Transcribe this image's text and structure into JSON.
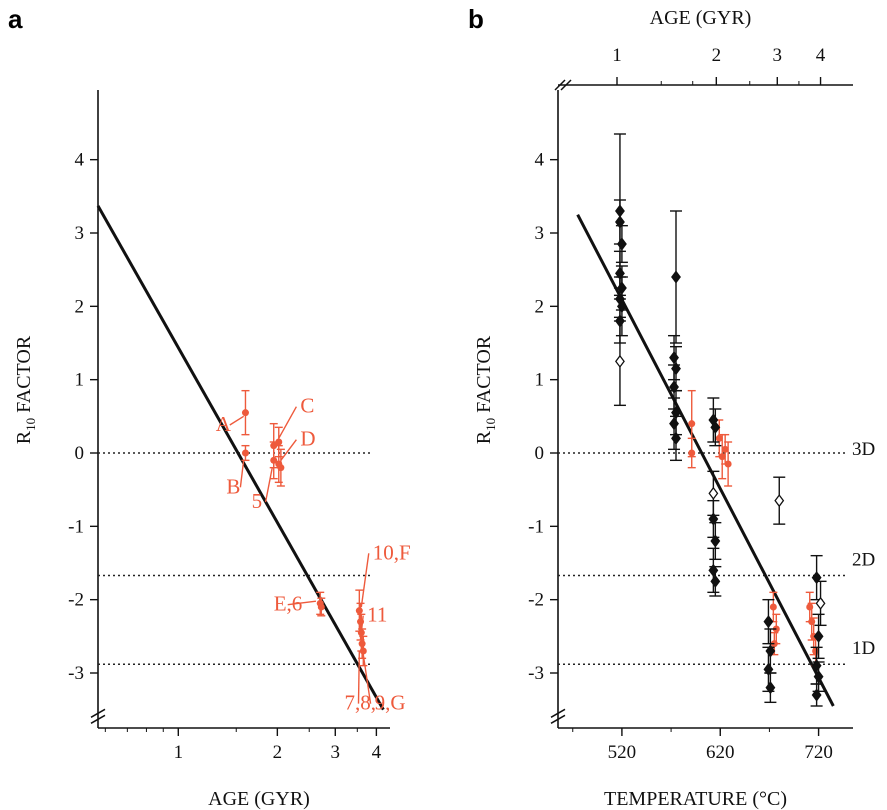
{
  "colors": {
    "red": "#ee5a3c",
    "black": "#111111",
    "ref_line": "#222222"
  },
  "panel_letters": {
    "a": "a",
    "b": "b"
  },
  "chart_data": [
    {
      "panel": "a",
      "type": "scatter",
      "xlabel": "AGE (GYR)",
      "ylabel_main": "R",
      "ylabel_sub": "10",
      "ylabel_rest": " FACTOR",
      "x_scale": "log",
      "xlim": [
        0.57,
        4.4
      ],
      "ylim": [
        -3.75,
        4.95
      ],
      "x_ticks": [
        1,
        2,
        3,
        4
      ],
      "y_ticks": [
        4,
        3,
        2,
        1,
        0,
        -1,
        -2,
        -3
      ],
      "y_tick_labels": [
        "4",
        "3",
        "2",
        "1",
        "0",
        "-1",
        "-2",
        "-3"
      ],
      "axis_break": true,
      "reference_lines": [
        0,
        -1.67,
        -2.88
      ],
      "fit_line": {
        "x": [
          0.57,
          4.2
        ],
        "y": [
          3.37,
          -3.5
        ]
      },
      "series": [
        {
          "color": "#ee5a3c",
          "points": [
            {
              "x": 1.6,
              "y": 0.55,
              "err": 0.3
            },
            {
              "x": 1.6,
              "y": 0.0,
              "err": 0.1
            },
            {
              "x": 1.95,
              "y": 0.1,
              "err": 0.3
            },
            {
              "x": 1.95,
              "y": -0.1,
              "err": 0.25
            },
            {
              "x": 2.02,
              "y": 0.15,
              "err": 0.2
            },
            {
              "x": 2.02,
              "y": -0.15,
              "err": 0.25
            },
            {
              "x": 2.05,
              "y": -0.2,
              "err": 0.25
            },
            {
              "x": 2.7,
              "y": -2.05,
              "err": 0.15
            },
            {
              "x": 2.72,
              "y": -2.1,
              "err": 0.12
            },
            {
              "x": 3.55,
              "y": -2.15,
              "err": 0.28
            },
            {
              "x": 3.6,
              "y": -2.45,
              "err": 0.25
            },
            {
              "x": 3.62,
              "y": -2.6,
              "err": 0.2
            },
            {
              "x": 3.65,
              "y": -2.7,
              "err": 0.2
            },
            {
              "x": 3.58,
              "y": -2.3,
              "err": 0.25
            }
          ]
        }
      ],
      "annotations": [
        {
          "text": "A",
          "x": 1.3,
          "y": 0.3,
          "to_x": 1.58,
          "to_y": 0.5
        },
        {
          "text": "B",
          "x": 1.4,
          "y": -0.55,
          "to_x": 1.58,
          "to_y": -0.1
        },
        {
          "text": "C",
          "x": 2.35,
          "y": 0.55,
          "to_x": 2.02,
          "to_y": 0.2
        },
        {
          "text": "D",
          "x": 2.35,
          "y": 0.1,
          "to_x": 2.05,
          "to_y": -0.1
        },
        {
          "text": "5",
          "x": 1.67,
          "y": -0.75,
          "to_x": 1.93,
          "to_y": -0.2
        },
        {
          "text": "10,F",
          "x": 3.9,
          "y": -1.45,
          "to_x": 3.6,
          "to_y": -2.1
        },
        {
          "text": "11",
          "x": 3.75,
          "y": -2.3,
          "to_x": 3.6,
          "to_y": -2.45
        },
        {
          "text": "E,6",
          "x": 1.95,
          "y": -2.15,
          "to_x": 2.62,
          "to_y": -2.02
        },
        {
          "text": "7,8,",
          "x": 3.2,
          "y": -3.5,
          "to_x": 3.55,
          "to_y": -2.7
        },
        {
          "text": "9,G",
          "x": 3.95,
          "y": -3.5,
          "to_x": 3.65,
          "to_y": -2.75
        }
      ]
    },
    {
      "panel": "b",
      "type": "scatter",
      "xlabel": "TEMPERATURE (°C)",
      "top_xlabel": "AGE (GYR)",
      "ylabel_main": "R",
      "ylabel_sub": "10",
      "ylabel_rest": " FACTOR",
      "xlim": [
        455,
        755
      ],
      "ylim": [
        -3.75,
        4.95
      ],
      "x_ticks": [
        520,
        620,
        720
      ],
      "x_tick_labels": [
        "520",
        "620",
        "720"
      ],
      "top_x_ticks": [
        1,
        2,
        3,
        4
      ],
      "top_x_tick_labels": [
        "1",
        "2",
        "3",
        "4"
      ],
      "top_x_tick_positions_temp": [
        515,
        616,
        678,
        722
      ],
      "y_ticks": [
        4,
        3,
        2,
        1,
        0,
        -1,
        -2,
        -3
      ],
      "y_tick_labels": [
        "4",
        "3",
        "2",
        "1",
        "0",
        "-1",
        "-2",
        "-3"
      ],
      "axis_break": true,
      "reference_lines": [
        {
          "y": 0,
          "label": "3D"
        },
        {
          "y": -1.67,
          "label": "2D"
        },
        {
          "y": -2.88,
          "label": "1D"
        }
      ],
      "fit_line": {
        "x": [
          475,
          735
        ],
        "y": [
          3.25,
          -3.45
        ]
      },
      "series": [
        {
          "color": "#111111",
          "marker": "diamond-filled",
          "points": [
            {
              "x": 518,
              "y": 3.3,
              "err": 1.05
            },
            {
              "x": 518,
              "y": 3.15,
              "err": 0.3
            },
            {
              "x": 520,
              "y": 2.85,
              "err": 0.25
            },
            {
              "x": 518,
              "y": 2.45,
              "err": 0.3
            },
            {
              "x": 520,
              "y": 2.25,
              "err": 0.3
            },
            {
              "x": 518,
              "y": 2.1,
              "err": 0.3
            },
            {
              "x": 520,
              "y": 2.0,
              "err": 0.4
            },
            {
              "x": 518,
              "y": 1.8,
              "err": 0.3
            },
            {
              "x": 575,
              "y": 2.4,
              "err": 0.9
            },
            {
              "x": 573,
              "y": 1.3,
              "err": 0.3
            },
            {
              "x": 575,
              "y": 1.15,
              "err": 0.3
            },
            {
              "x": 573,
              "y": 0.9,
              "err": 0.3
            },
            {
              "x": 575,
              "y": 0.55,
              "err": 0.3
            },
            {
              "x": 573,
              "y": 0.4,
              "err": 0.35
            },
            {
              "x": 575,
              "y": 0.2,
              "err": 0.3
            },
            {
              "x": 613,
              "y": 0.45,
              "err": 0.3
            },
            {
              "x": 615,
              "y": 0.35,
              "err": 0.25
            },
            {
              "x": 613,
              "y": -0.9,
              "err": 0.25
            },
            {
              "x": 615,
              "y": -1.2,
              "err": 0.25
            },
            {
              "x": 613,
              "y": -1.6,
              "err": 0.3
            },
            {
              "x": 615,
              "y": -1.75,
              "err": 0.2
            },
            {
              "x": 669,
              "y": -2.3,
              "err": 0.3
            },
            {
              "x": 671,
              "y": -2.7,
              "err": 0.3
            },
            {
              "x": 669,
              "y": -2.95,
              "err": 0.3
            },
            {
              "x": 671,
              "y": -3.2,
              "err": 0.2
            },
            {
              "x": 718,
              "y": -1.7,
              "err": 0.3
            },
            {
              "x": 720,
              "y": -2.5,
              "err": 0.3
            },
            {
              "x": 718,
              "y": -2.9,
              "err": 0.25
            },
            {
              "x": 720,
              "y": -3.05,
              "err": 0.2
            },
            {
              "x": 718,
              "y": -3.3,
              "err": 0.15
            }
          ]
        },
        {
          "color": "#111111",
          "marker": "diamond-open",
          "points": [
            {
              "x": 518,
              "y": 1.25,
              "err": 0.6
            },
            {
              "x": 613,
              "y": -0.55,
              "err": 0.3
            },
            {
              "x": 680,
              "y": -0.65,
              "err": 0.32
            },
            {
              "x": 722,
              "y": -2.05,
              "err": 0.3
            }
          ]
        },
        {
          "color": "#ee5a3c",
          "marker": "dot",
          "points": [
            {
              "x": 591,
              "y": 0.4,
              "err": 0.45
            },
            {
              "x": 591,
              "y": 0.0,
              "err": 0.2
            },
            {
              "x": 619,
              "y": 0.2,
              "err": 0.25
            },
            {
              "x": 622,
              "y": -0.05,
              "err": 0.3
            },
            {
              "x": 625,
              "y": 0.05,
              "err": 0.2
            },
            {
              "x": 628,
              "y": -0.15,
              "err": 0.3
            },
            {
              "x": 674,
              "y": -2.1,
              "err": 0.2
            },
            {
              "x": 677,
              "y": -2.4,
              "err": 0.2
            },
            {
              "x": 675,
              "y": -2.6,
              "err": 0.15
            },
            {
              "x": 711,
              "y": -2.1,
              "err": 0.2
            },
            {
              "x": 713,
              "y": -2.3,
              "err": 0.25
            },
            {
              "x": 715,
              "y": -2.5,
              "err": 0.25
            },
            {
              "x": 717,
              "y": -2.7,
              "err": 0.2
            }
          ]
        }
      ]
    }
  ]
}
